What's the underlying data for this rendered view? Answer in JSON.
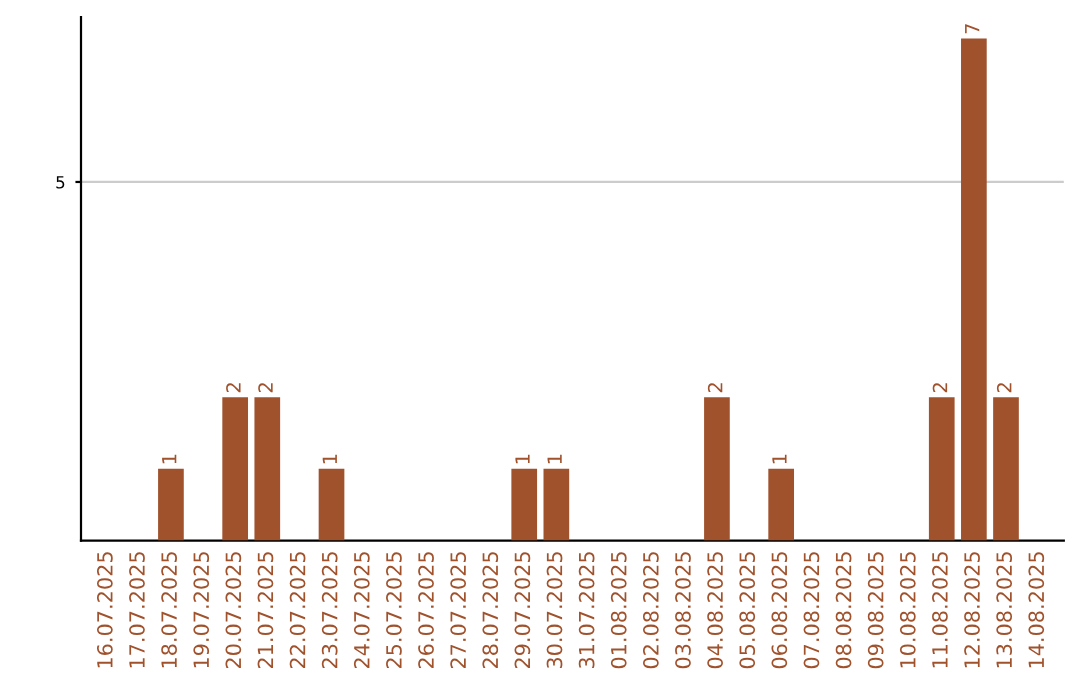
{
  "chart_data": {
    "type": "bar",
    "categories": [
      "16.07.2025",
      "17.07.2025",
      "18.07.2025",
      "19.07.2025",
      "20.07.2025",
      "21.07.2025",
      "22.07.2025",
      "23.07.2025",
      "24.07.2025",
      "25.07.2025",
      "26.07.2025",
      "27.07.2025",
      "28.07.2025",
      "29.07.2025",
      "30.07.2025",
      "31.07.2025",
      "01.08.2025",
      "02.08.2025",
      "03.08.2025",
      "04.08.2025",
      "05.08.2025",
      "06.08.2025",
      "07.08.2025",
      "08.08.2025",
      "09.08.2025",
      "10.08.2025",
      "11.08.2025",
      "12.08.2025",
      "13.08.2025",
      "14.08.2025"
    ],
    "values": [
      0,
      0,
      1,
      0,
      2,
      2,
      0,
      1,
      0,
      0,
      0,
      0,
      0,
      1,
      1,
      0,
      0,
      0,
      0,
      2,
      0,
      1,
      0,
      0,
      0,
      0,
      2,
      7,
      2,
      0
    ],
    "value_labels": [
      null,
      null,
      "1",
      null,
      "2",
      "2",
      null,
      "1",
      null,
      null,
      null,
      null,
      null,
      "1",
      "1",
      null,
      null,
      null,
      null,
      "2",
      null,
      "1",
      null,
      null,
      null,
      null,
      "2",
      "7",
      "2",
      null
    ],
    "color": "#a0522d",
    "ylim": [
      0,
      7.3
    ],
    "yticks": [
      5
    ],
    "grid": "y"
  }
}
